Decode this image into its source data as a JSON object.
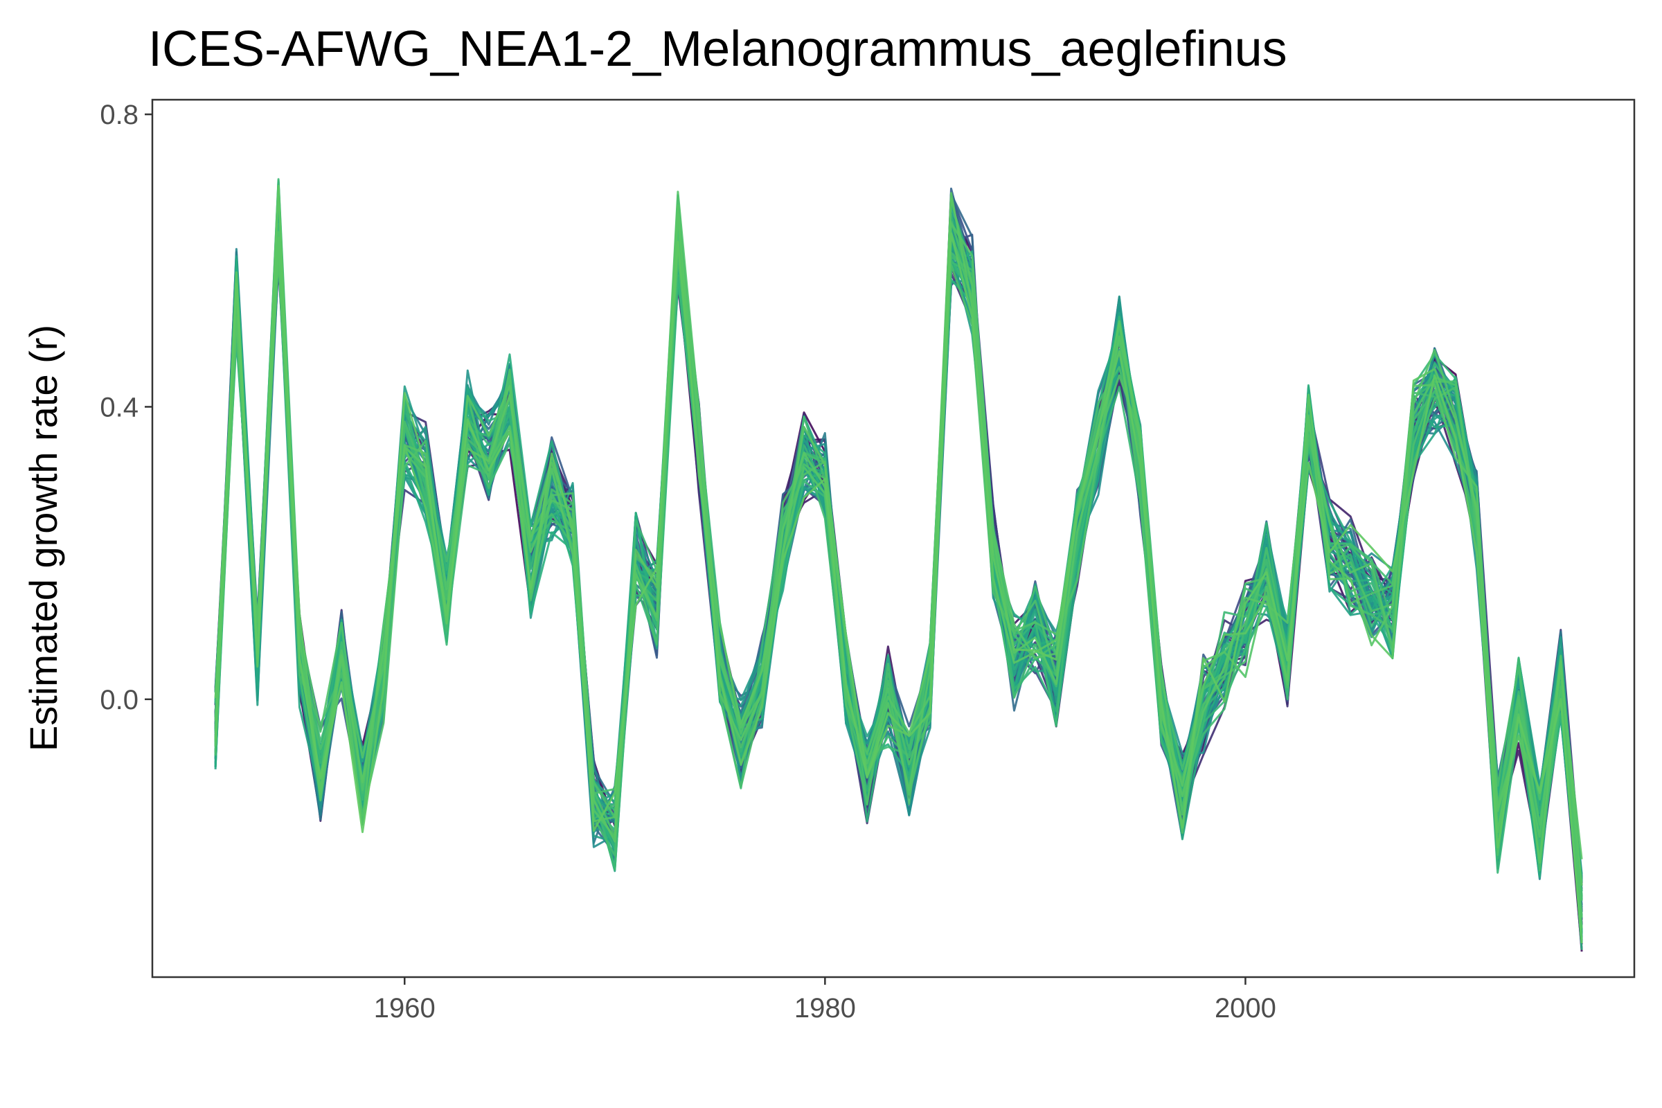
{
  "chart_data": {
    "type": "line",
    "title": "ICES-AFWG_NEA1-2_Melanogrammus_aeglefinus",
    "xlabel": "",
    "ylabel": "Estimated growth rate (r)",
    "xlim": [
      1948,
      2018.5
    ],
    "ylim": [
      -0.38,
      0.82
    ],
    "x_ticks": [
      1960,
      1980,
      2000
    ],
    "x_tick_labels": [
      "1960",
      "1980",
      "2000"
    ],
    "y_ticks": [
      0.0,
      0.4,
      0.8
    ],
    "y_tick_labels": [
      "0.0",
      "0.4",
      "0.8"
    ],
    "grid": false,
    "legend": "none",
    "colormap": [
      "#440154",
      "#3b528b",
      "#21908d",
      "#28ae80",
      "#5ec962"
    ],
    "n_series": 60,
    "spread": 0.05,
    "x": [
      1951,
      1952,
      1953,
      1954,
      1955,
      1956,
      1957,
      1958,
      1959,
      1960,
      1961,
      1962,
      1963,
      1964,
      1965,
      1966,
      1967,
      1968,
      1969,
      1970,
      1971,
      1972,
      1973,
      1974,
      1975,
      1976,
      1977,
      1978,
      1979,
      1980,
      1981,
      1982,
      1983,
      1984,
      1985,
      1986,
      1987,
      1988,
      1989,
      1990,
      1991,
      1992,
      1993,
      1994,
      1995,
      1996,
      1997,
      1998,
      1999,
      2000,
      2001,
      2002,
      2003,
      2004,
      2005,
      2006,
      2007,
      2008,
      2009,
      2010,
      2011,
      2012,
      2013,
      2014,
      2015,
      2016
    ],
    "mean": [
      -0.04,
      0.55,
      0.06,
      0.65,
      0.06,
      -0.1,
      0.07,
      -0.12,
      0.04,
      0.36,
      0.31,
      0.14,
      0.38,
      0.33,
      0.4,
      0.18,
      0.29,
      0.25,
      -0.14,
      -0.18,
      0.2,
      0.12,
      0.62,
      0.35,
      0.04,
      -0.06,
      0.03,
      0.22,
      0.33,
      0.3,
      0.03,
      -0.11,
      0.0,
      -0.1,
      0.02,
      0.63,
      0.57,
      0.2,
      0.05,
      0.1,
      0.03,
      0.22,
      0.35,
      0.49,
      0.32,
      -0.01,
      -0.13,
      -0.01,
      0.05,
      0.1,
      0.18,
      0.05,
      0.37,
      0.21,
      0.18,
      0.14,
      0.12,
      0.37,
      0.43,
      0.39,
      0.25,
      -0.17,
      0.0,
      -0.18,
      0.03,
      -0.28
    ]
  }
}
